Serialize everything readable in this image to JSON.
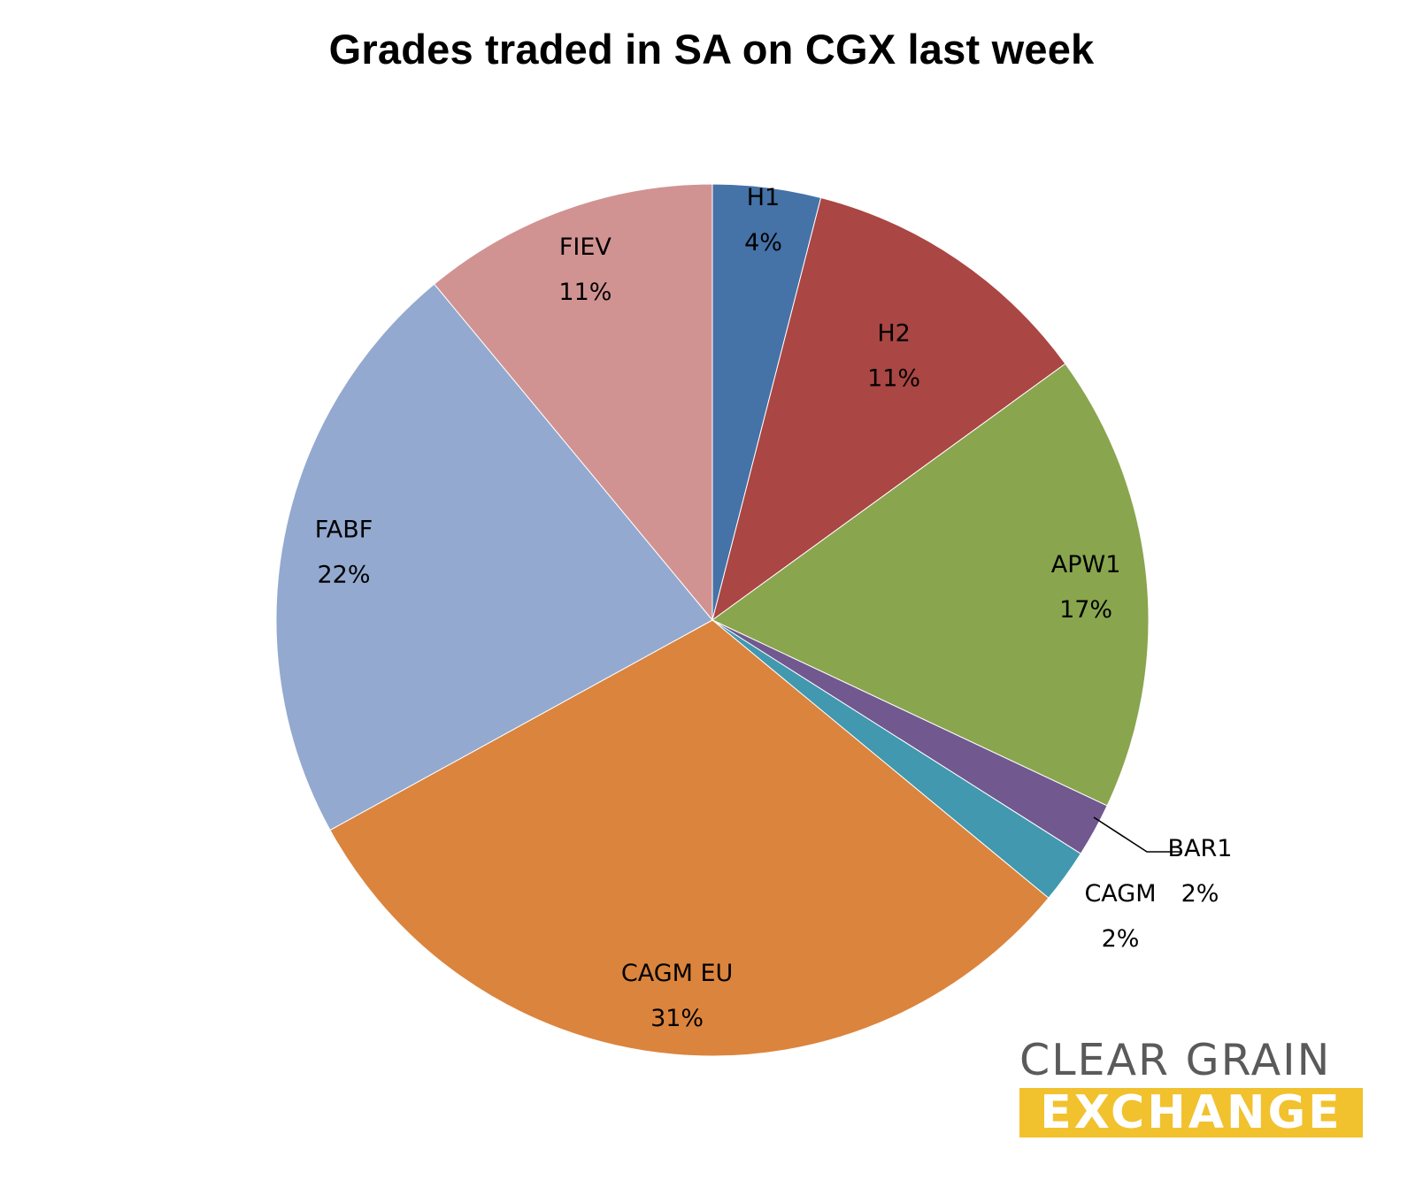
{
  "chart_data": {
    "type": "pie",
    "title": "Grades traded in SA on CGX last week",
    "slices": [
      {
        "name": "H1",
        "label": "H1",
        "value": 4,
        "value_label": "4%",
        "color": "#4572a7"
      },
      {
        "name": "H2",
        "label": "H2",
        "value": 11,
        "value_label": "11%",
        "color": "#aa4643"
      },
      {
        "name": "APW1",
        "label": "APW1",
        "value": 17,
        "value_label": "17%",
        "color": "#89a54e"
      },
      {
        "name": "BAR1",
        "label": "BAR1",
        "value": 2,
        "value_label": "2%",
        "color": "#71588f"
      },
      {
        "name": "CAGM",
        "label": "CAGM",
        "value": 2,
        "value_label": "2%",
        "color": "#4198af"
      },
      {
        "name": "CAGM EU",
        "label": "CAGM EU",
        "value": 31,
        "value_label": "31%",
        "color": "#db843d"
      },
      {
        "name": "FABF",
        "label": "FABF",
        "value": 22,
        "value_label": "22%",
        "color": "#93a9cf"
      },
      {
        "name": "FIEV",
        "label": "FIEV",
        "value": 11,
        "value_label": "11%",
        "color": "#d19392"
      }
    ],
    "start_angle": "12 o'clock",
    "direction": "clockwise",
    "legend": "none",
    "data_labels": "category name and percentage"
  },
  "logo": {
    "line1": "CLEAR GRAIN",
    "line2": "EXCHANGE",
    "line1_color": "#5a5a5a",
    "line2_bg": "#f2c12e",
    "line2_color": "#ffffff"
  }
}
